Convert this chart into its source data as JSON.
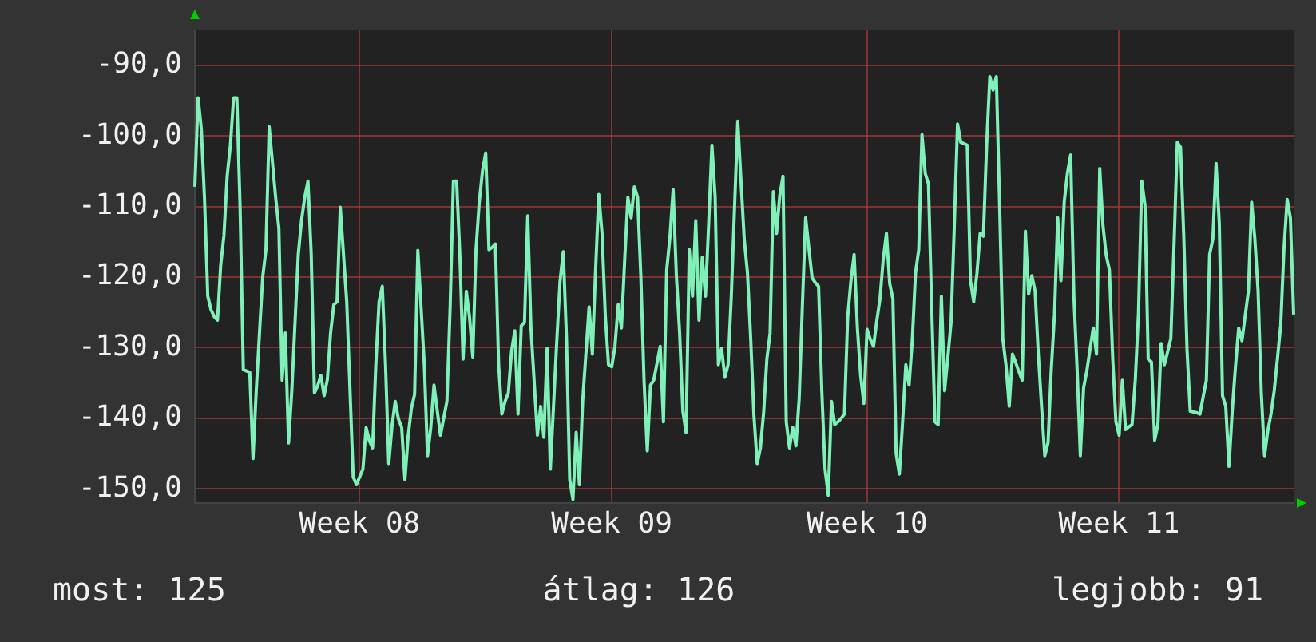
{
  "chart_data": {
    "type": "line",
    "annotations": [
      "most: 125",
      "átlag: 126",
      "legjobb: 91"
    ],
    "categories": [
      null,
      null,
      null,
      null,
      null,
      null,
      null,
      null,
      null,
      null,
      null,
      null,
      null,
      null,
      null,
      null,
      null,
      null,
      null,
      null,
      null,
      null,
      null,
      null,
      null,
      null,
      null,
      null,
      null,
      null,
      null,
      null,
      null,
      null,
      null,
      null,
      null,
      null,
      null,
      null,
      null,
      null,
      null,
      null,
      null,
      null,
      null,
      null,
      null,
      null,
      null,
      "Week 08",
      null,
      null,
      null,
      null,
      null,
      null,
      null,
      null,
      null,
      null,
      null,
      null,
      null,
      null,
      null,
      null,
      null,
      null,
      null,
      null,
      null,
      null,
      null,
      null,
      null,
      null,
      null,
      null,
      null,
      null,
      null,
      null,
      null,
      null,
      null,
      null,
      null,
      null,
      null,
      null,
      null,
      null,
      null,
      null,
      null,
      null,
      null,
      null,
      null,
      null,
      null,
      null,
      null,
      null,
      null,
      null,
      null,
      null,
      null,
      null,
      null,
      null,
      null,
      null,
      null,
      null,
      null,
      null,
      null,
      null,
      null,
      null,
      null,
      null,
      null,
      null,
      null,
      "Week 09",
      null,
      null,
      null,
      null,
      null,
      null,
      null,
      null,
      null,
      null,
      null,
      null,
      null,
      null,
      null,
      null,
      null,
      null,
      null,
      null,
      null,
      null,
      null,
      null,
      null,
      null,
      null,
      null,
      null,
      null,
      null,
      null,
      null,
      null,
      null,
      null,
      null,
      null,
      null,
      null,
      null,
      null,
      null,
      null,
      null,
      null,
      null,
      null,
      null,
      null,
      null,
      null,
      null,
      null,
      null,
      null,
      null,
      null,
      null,
      null,
      null,
      null,
      null,
      null,
      null,
      null,
      null,
      null,
      null,
      null,
      null,
      null,
      null,
      null,
      null,
      null,
      null,
      null,
      "Week 10",
      null,
      null,
      null,
      null,
      null,
      null,
      null,
      null,
      null,
      null,
      null,
      null,
      null,
      null,
      null,
      null,
      null,
      null,
      null,
      null,
      null,
      null,
      null,
      null,
      null,
      null,
      null,
      null,
      null,
      null,
      null,
      null,
      null,
      null,
      null,
      null,
      null,
      null,
      null,
      null,
      null,
      null,
      null,
      null,
      null,
      null,
      null,
      null,
      null,
      null,
      null,
      null,
      null,
      null,
      null,
      null,
      null,
      null,
      null,
      null,
      null,
      null,
      null,
      null,
      null,
      null,
      null,
      null,
      null,
      null,
      null,
      null,
      null,
      null,
      null,
      null,
      null,
      "Week 11",
      null,
      null,
      null,
      null,
      null,
      null,
      null,
      null,
      null,
      null,
      null,
      null,
      null,
      null,
      null,
      null,
      null,
      null,
      null,
      null,
      null,
      null,
      null,
      null,
      null,
      null,
      null,
      null,
      null,
      null,
      null,
      null,
      null,
      null,
      null,
      null,
      null,
      null,
      null,
      null,
      null,
      null,
      null,
      null,
      null,
      null,
      null,
      null,
      null,
      null,
      null,
      null,
      null,
      null
    ],
    "ylim": [
      -152,
      -85
    ],
    "yticks": [
      {
        "value": -150,
        "label": "-150,0"
      },
      {
        "value": -140,
        "label": "-140,0"
      },
      {
        "value": -130,
        "label": "-130,0"
      },
      {
        "value": -120,
        "label": "-120,0"
      },
      {
        "value": -110,
        "label": "-110,0"
      },
      {
        "value": -100,
        "label": "-100,0"
      },
      {
        "value": -90,
        "label": "-90,0"
      }
    ],
    "grid": true,
    "line_style": "solid",
    "series": [
      {
        "color": "#7ef0b8",
        "values": [
          -107.2,
          -94.6,
          -99.0,
          -109.0,
          -122.7,
          -124.6,
          -125.6,
          -126.1,
          -118.3,
          -114.1,
          -105.7,
          -101.3,
          -94.6,
          -94.6,
          -110.1,
          -133.1,
          -133.3,
          -133.5,
          -145.7,
          -136.1,
          -127.9,
          -120.0,
          -116.1,
          -98.7,
          -103.7,
          -108.7,
          -113.1,
          -134.6,
          -127.9,
          -143.5,
          -136.1,
          -126.4,
          -116.8,
          -112.0,
          -108.7,
          -106.4,
          -116.6,
          -136.4,
          -135.4,
          -133.9,
          -136.8,
          -134.5,
          -127.9,
          -123.9,
          -123.5,
          -110.1,
          -116.8,
          -123.5,
          -135.9,
          -148.3,
          -149.4,
          -148.3,
          -147.2,
          -141.3,
          -143.2,
          -144.2,
          -132.4,
          -123.5,
          -121.3,
          -132.4,
          -146.4,
          -141.1,
          -137.6,
          -140.1,
          -141.3,
          -148.7,
          -142.5,
          -138.6,
          -136.6,
          -116.2,
          -124.3,
          -132.4,
          -145.3,
          -141.3,
          -135.3,
          -138.9,
          -142.4,
          -140.0,
          -137.6,
          -124.2,
          -106.4,
          -106.4,
          -116.8,
          -131.6,
          -122.0,
          -125.7,
          -131.3,
          -116.1,
          -109.4,
          -105.0,
          -102.4,
          -116.1,
          -115.8,
          -115.3,
          -132.4,
          -139.4,
          -137.6,
          -136.4,
          -130.5,
          -127.6,
          -139.4,
          -126.9,
          -126.4,
          -111.3,
          -127.2,
          -134.8,
          -142.4,
          -138.3,
          -142.7,
          -130.1,
          -147.2,
          -138.1,
          -129.0,
          -120.6,
          -116.4,
          -128.7,
          -148.7,
          -151.5,
          -142.0,
          -149.4,
          -137.6,
          -130.9,
          -124.2,
          -130.9,
          -119.0,
          -108.3,
          -113.8,
          -125.4,
          -132.4,
          -132.7,
          -129.8,
          -123.9,
          -127.2,
          -117.6,
          -108.7,
          -111.6,
          -107.2,
          -108.7,
          -119.8,
          -134.7,
          -144.6,
          -135.3,
          -134.6,
          -132.2,
          -129.8,
          -140.5,
          -119.0,
          -114.4,
          -107.6,
          -119.8,
          -127.9,
          -139.0,
          -142.0,
          -116.1,
          -122.7,
          -112.0,
          -126.1,
          -117.2,
          -122.7,
          -112.4,
          -101.3,
          -108.7,
          -132.4,
          -130.1,
          -134.2,
          -132.4,
          -122.7,
          -110.1,
          -97.9,
          -106.4,
          -114.6,
          -119.4,
          -128.7,
          -139.6,
          -146.4,
          -144.2,
          -139.2,
          -131.6,
          -127.9,
          -107.9,
          -113.8,
          -108.4,
          -105.7,
          -140.5,
          -144.2,
          -141.3,
          -143.9,
          -137.2,
          -123.9,
          -111.6,
          -115.9,
          -120.1,
          -120.8,
          -121.3,
          -136.1,
          -147.2,
          -150.9,
          -137.6,
          -140.9,
          -140.5,
          -140.0,
          -139.4,
          -125.7,
          -120.6,
          -116.8,
          -127.1,
          -133.9,
          -137.9,
          -127.4,
          -128.8,
          -129.8,
          -126.2,
          -123.1,
          -117.5,
          -113.8,
          -120.9,
          -123.1,
          -145.0,
          -147.9,
          -140.5,
          -132.4,
          -135.3,
          -128.9,
          -119.4,
          -116.1,
          -99.8,
          -105.3,
          -106.8,
          -124.2,
          -140.5,
          -140.9,
          -122.7,
          -136.1,
          -131.3,
          -126.4,
          -112.7,
          -98.3,
          -100.9,
          -101.1,
          -101.3,
          -120.5,
          -123.5,
          -119.5,
          -113.8,
          -114.2,
          -101.3,
          -91.6,
          -93.5,
          -91.6,
          -109.4,
          -128.7,
          -132.5,
          -138.3,
          -130.9,
          -132.1,
          -133.4,
          -134.6,
          -113.5,
          -122.4,
          -119.8,
          -122.0,
          -130.9,
          -138.3,
          -145.3,
          -143.5,
          -133.1,
          -125.3,
          -111.6,
          -120.5,
          -109.4,
          -105.3,
          -102.7,
          -122.7,
          -133.1,
          -145.3,
          -135.7,
          -133.3,
          -130.2,
          -127.2,
          -130.9,
          -104.6,
          -112.7,
          -116.9,
          -119.0,
          -131.3,
          -140.5,
          -142.4,
          -134.6,
          -141.6,
          -141.2,
          -140.9,
          -134.6,
          -125.0,
          -106.4,
          -109.8,
          -131.6,
          -132.0,
          -143.1,
          -140.9,
          -129.4,
          -132.4,
          -130.6,
          -128.7,
          -115.3,
          -100.9,
          -101.6,
          -114.2,
          -130.1,
          -139.0,
          -139.1,
          -139.2,
          -139.4,
          -137.0,
          -134.6,
          -116.8,
          -114.6,
          -103.9,
          -112.4,
          -136.8,
          -138.3,
          -146.8,
          -139.0,
          -132.7,
          -127.2,
          -129.0,
          -125.5,
          -122.0,
          -109.4,
          -114.6,
          -122.0,
          -136.4,
          -145.3,
          -141.8,
          -139.4,
          -136.1,
          -131.5,
          -126.8,
          -116.1,
          -109.0,
          -111.6,
          -125.3
        ]
      }
    ]
  }
}
